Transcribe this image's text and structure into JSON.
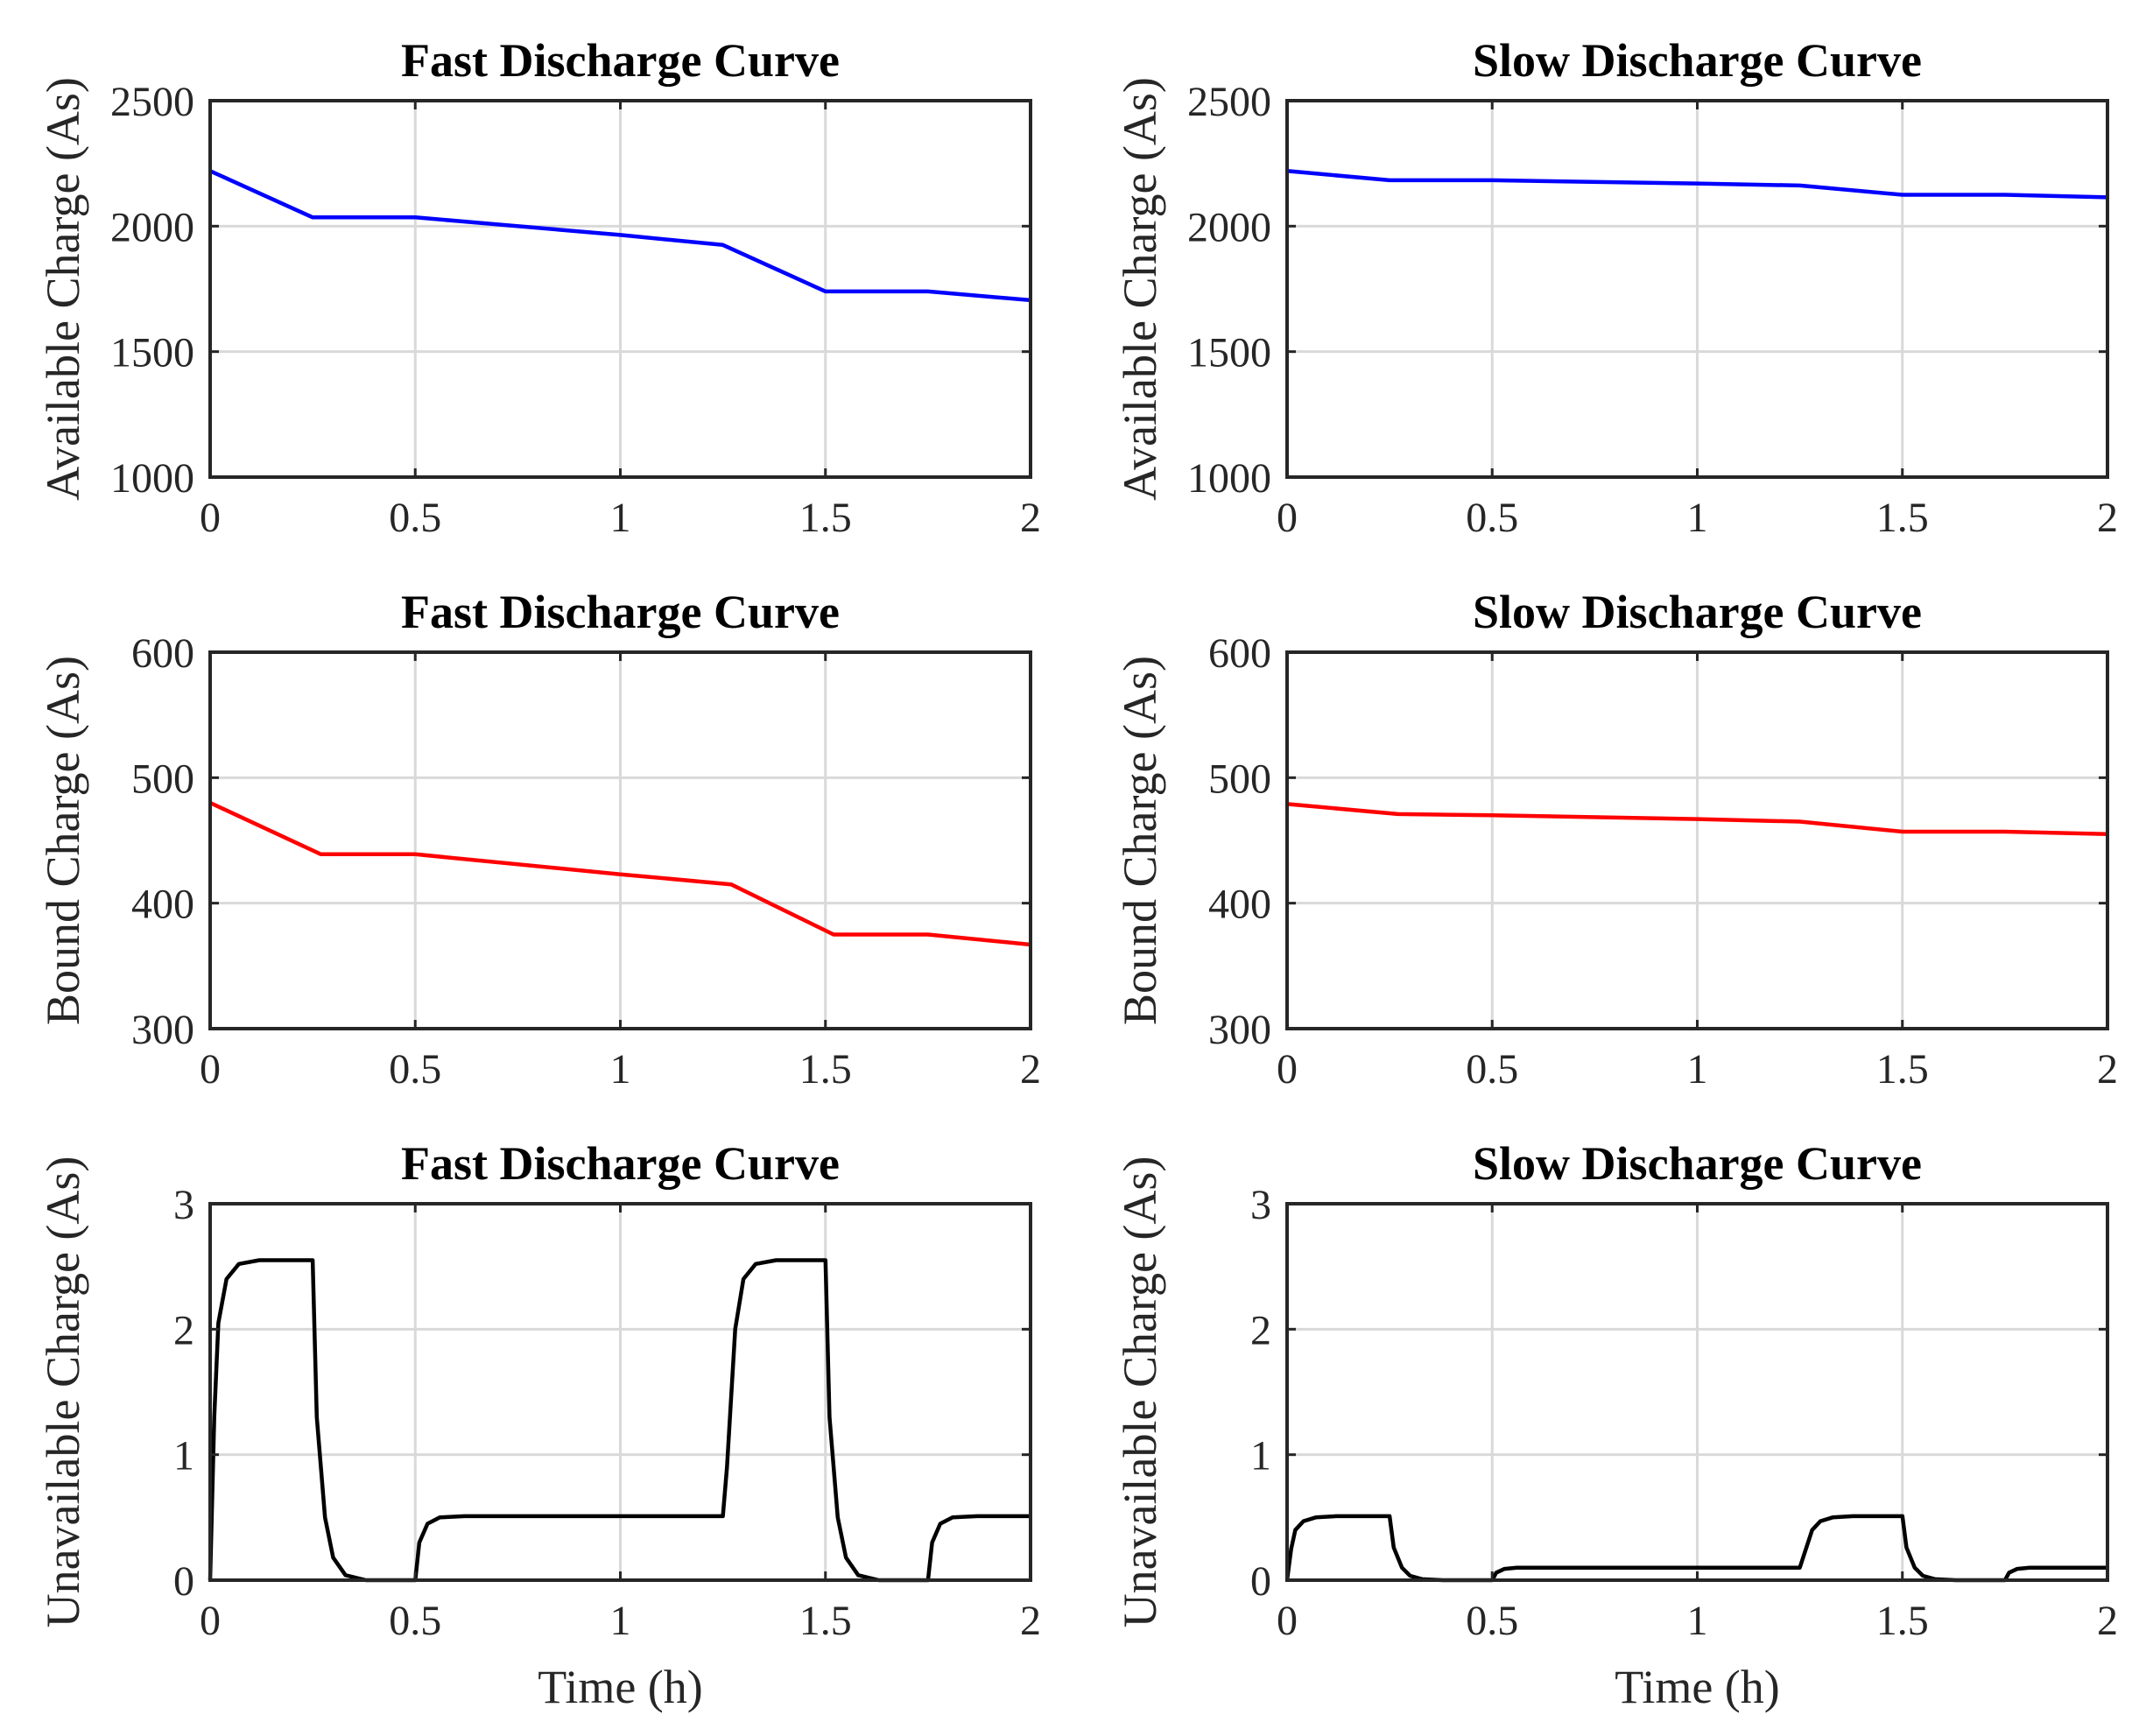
{
  "chart_data": [
    {
      "type": "line",
      "panel": "fast-available",
      "title": "Fast Discharge Curve",
      "xlabel": "",
      "ylabel": "Available Charge (As)",
      "xlim": [
        0,
        2
      ],
      "ylim": [
        1000,
        2500
      ],
      "xticks": [
        0,
        0.5,
        1,
        1.5,
        2
      ],
      "xtick_labels": [
        "0",
        "0.5",
        "1",
        "1.5",
        "2"
      ],
      "yticks": [
        1000,
        1500,
        2000,
        2500
      ],
      "ytick_labels": [
        "1000",
        "1500",
        "2000",
        "2500"
      ],
      "grid": true,
      "series": [
        {
          "name": "available",
          "color": "#0000ff",
          "x": [
            0,
            0.25,
            0.5,
            1.0,
            1.25,
            1.5,
            1.75,
            2.0
          ],
          "y": [
            2220,
            2035,
            2035,
            1965,
            1925,
            1740,
            1740,
            1705
          ]
        }
      ]
    },
    {
      "type": "line",
      "panel": "slow-available",
      "title": "Slow Discharge Curve",
      "xlabel": "",
      "ylabel": "Available Charge (As)",
      "xlim": [
        0,
        2
      ],
      "ylim": [
        1000,
        2500
      ],
      "xticks": [
        0,
        0.5,
        1,
        1.5,
        2
      ],
      "xtick_labels": [
        "0",
        "0.5",
        "1",
        "1.5",
        "2"
      ],
      "yticks": [
        1000,
        1500,
        2000,
        2500
      ],
      "ytick_labels": [
        "1000",
        "1500",
        "2000",
        "2500"
      ],
      "grid": true,
      "series": [
        {
          "name": "available",
          "color": "#0000ff",
          "x": [
            0,
            0.25,
            0.5,
            1.0,
            1.25,
            1.5,
            1.75,
            2.0
          ],
          "y": [
            2220,
            2183,
            2183,
            2170,
            2162,
            2125,
            2125,
            2115
          ]
        }
      ]
    },
    {
      "type": "line",
      "panel": "fast-bound",
      "title": "Fast Discharge Curve",
      "xlabel": "",
      "ylabel": "Bound Charge (As)",
      "xlim": [
        0,
        2
      ],
      "ylim": [
        300,
        600
      ],
      "xticks": [
        0,
        0.5,
        1,
        1.5,
        2
      ],
      "xtick_labels": [
        "0",
        "0.5",
        "1",
        "1.5",
        "2"
      ],
      "yticks": [
        300,
        400,
        500,
        600
      ],
      "ytick_labels": [
        "300",
        "400",
        "500",
        "600"
      ],
      "grid": true,
      "series": [
        {
          "name": "bound",
          "color": "#ff0000",
          "x": [
            0,
            0.27,
            0.5,
            1.0,
            1.27,
            1.52,
            1.75,
            2.0
          ],
          "y": [
            480,
            439,
            439,
            423,
            415,
            375,
            375,
            367
          ]
        }
      ]
    },
    {
      "type": "line",
      "panel": "slow-bound",
      "title": "Slow Discharge Curve",
      "xlabel": "",
      "ylabel": "Bound Charge (As)",
      "xlim": [
        0,
        2
      ],
      "ylim": [
        300,
        600
      ],
      "xticks": [
        0,
        0.5,
        1,
        1.5,
        2
      ],
      "xtick_labels": [
        "0",
        "0.5",
        "1",
        "1.5",
        "2"
      ],
      "yticks": [
        300,
        400,
        500,
        600
      ],
      "ytick_labels": [
        "300",
        "400",
        "500",
        "600"
      ],
      "grid": true,
      "series": [
        {
          "name": "bound",
          "color": "#ff0000",
          "x": [
            0,
            0.27,
            0.5,
            1.0,
            1.25,
            1.5,
            1.75,
            2.0
          ],
          "y": [
            479,
            471,
            470,
            467,
            465,
            457,
            457,
            455
          ]
        }
      ]
    },
    {
      "type": "line",
      "panel": "fast-unavailable",
      "title": "Fast Discharge Curve",
      "xlabel": "Time (h)",
      "ylabel": "Unavailable Charge (As)",
      "xlim": [
        0,
        2
      ],
      "ylim": [
        0,
        3
      ],
      "xticks": [
        0,
        0.5,
        1,
        1.5,
        2
      ],
      "xtick_labels": [
        "0",
        "0.5",
        "1",
        "1.5",
        "2"
      ],
      "yticks": [
        0,
        1,
        2,
        3
      ],
      "ytick_labels": [
        "0",
        "1",
        "2",
        "3"
      ],
      "grid": true,
      "series": [
        {
          "name": "unavailable",
          "color": "#000000",
          "x": [
            0,
            0.01,
            0.02,
            0.04,
            0.07,
            0.12,
            0.25,
            0.26,
            0.28,
            0.3,
            0.33,
            0.38,
            0.5,
            0.51,
            0.53,
            0.56,
            0.62,
            1.25,
            1.26,
            1.28,
            1.3,
            1.33,
            1.38,
            1.5,
            1.51,
            1.53,
            1.55,
            1.58,
            1.63,
            1.75,
            1.76,
            1.78,
            1.81,
            1.87,
            2.0
          ],
          "y": [
            0,
            1.3,
            2.05,
            2.4,
            2.52,
            2.55,
            2.55,
            1.3,
            0.5,
            0.18,
            0.04,
            0.0,
            0.0,
            0.3,
            0.45,
            0.5,
            0.51,
            0.51,
            0.9,
            2.0,
            2.4,
            2.52,
            2.55,
            2.55,
            1.3,
            0.5,
            0.18,
            0.04,
            0.0,
            0.0,
            0.3,
            0.45,
            0.5,
            0.51,
            0.51
          ]
        }
      ]
    },
    {
      "type": "line",
      "panel": "slow-unavailable",
      "title": "Slow Discharge Curve",
      "xlabel": "Time (h)",
      "ylabel": "Unavailable Charge (As)",
      "xlim": [
        0,
        2
      ],
      "ylim": [
        0,
        3
      ],
      "xticks": [
        0,
        0.5,
        1,
        1.5,
        2
      ],
      "xtick_labels": [
        "0",
        "0.5",
        "1",
        "1.5",
        "2"
      ],
      "yticks": [
        0,
        1,
        2,
        3
      ],
      "ytick_labels": [
        "0",
        "1",
        "2",
        "3"
      ],
      "grid": true,
      "series": [
        {
          "name": "unavailable",
          "color": "#000000",
          "x": [
            0,
            0.01,
            0.02,
            0.04,
            0.07,
            0.12,
            0.25,
            0.26,
            0.28,
            0.3,
            0.33,
            0.38,
            0.5,
            0.51,
            0.53,
            0.56,
            0.62,
            1.25,
            1.26,
            1.28,
            1.3,
            1.33,
            1.38,
            1.5,
            1.51,
            1.53,
            1.55,
            1.58,
            1.63,
            1.75,
            1.76,
            1.78,
            1.81,
            1.87,
            2.0
          ],
          "y": [
            0,
            0.25,
            0.4,
            0.47,
            0.5,
            0.51,
            0.51,
            0.26,
            0.1,
            0.035,
            0.008,
            0.0,
            0.0,
            0.06,
            0.09,
            0.1,
            0.1,
            0.1,
            0.2,
            0.4,
            0.47,
            0.5,
            0.51,
            0.51,
            0.26,
            0.1,
            0.035,
            0.008,
            0.0,
            0.0,
            0.06,
            0.09,
            0.1,
            0.1,
            0.1
          ]
        }
      ]
    }
  ]
}
